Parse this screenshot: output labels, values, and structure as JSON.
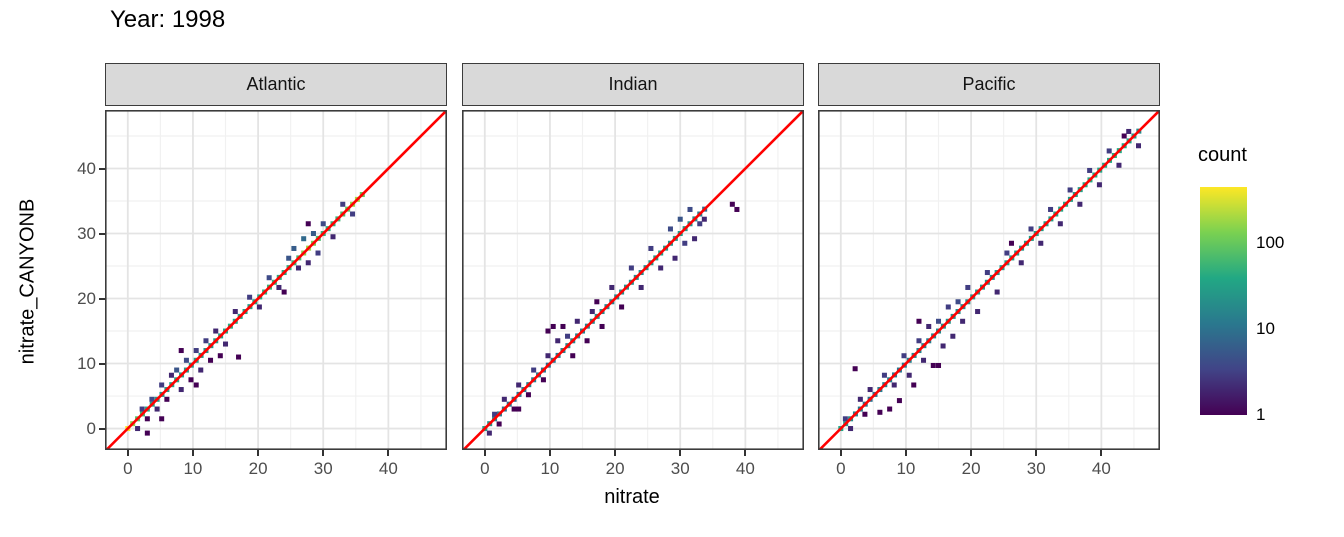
{
  "title": "Year: 1998",
  "axes": {
    "x_label": "nitrate",
    "y_label": "nitrate_CANYONB",
    "x_ticks": [
      0,
      10,
      20,
      30,
      40
    ],
    "y_ticks": [
      0,
      10,
      20,
      30,
      40
    ],
    "minor_ticks": [
      5,
      15,
      25,
      35,
      45
    ],
    "x_range": [
      -3.5,
      49
    ],
    "y_range": [
      -3.3,
      49
    ]
  },
  "legend": {
    "title": "count",
    "tick_labels": [
      "100",
      "10",
      "1"
    ],
    "tick_counts": [
      100,
      10,
      1
    ],
    "max_count": 447,
    "scale": "log10"
  },
  "colors": {
    "viridis_stops": [
      "#440154",
      "#414487",
      "#2a788e",
      "#22a884",
      "#7ad151",
      "#fde725"
    ],
    "identity_line": "#ff0000",
    "strip_fill": "#d9d9d9",
    "panel_border": "#3c3c3c",
    "grid_major": "#e4e4e4",
    "grid_minor": "#f1f1f1",
    "tick_text": "#4d4d4d"
  },
  "chart_data": {
    "type": "heatmap",
    "subtype": "bin2d",
    "title": "Year: 1998",
    "xlabel": "nitrate",
    "ylabel": "nitrate_CANYONB",
    "facets": [
      {
        "label": "Atlantic",
        "bin_step": 0.75,
        "bin_size": 0.77,
        "diagonal_note": "core bins lie on y = x, x from 0 by bin_step",
        "core_counts": [
          420,
          150,
          80,
          55,
          40,
          30,
          25,
          22,
          26,
          30,
          34,
          30,
          26,
          24,
          28,
          25,
          22,
          24,
          27,
          31,
          36,
          42,
          38,
          34,
          31,
          29,
          33,
          38,
          44,
          52,
          48,
          44,
          40,
          46,
          54,
          64,
          150,
          180,
          120,
          70,
          50,
          44,
          48,
          56,
          70,
          90,
          170,
          210,
          100
        ],
        "side_bins": [
          [
            1.5,
            0.0,
            2
          ],
          [
            2.2,
            3.0,
            3
          ],
          [
            3.0,
            1.5,
            1
          ],
          [
            3.7,
            4.5,
            4
          ],
          [
            4.5,
            3.0,
            2
          ],
          [
            5.2,
            6.7,
            3
          ],
          [
            6.0,
            4.5,
            1
          ],
          [
            6.7,
            8.2,
            2
          ],
          [
            7.5,
            9.0,
            5
          ],
          [
            8.2,
            6.0,
            2
          ],
          [
            9.0,
            10.5,
            4
          ],
          [
            9.7,
            7.5,
            1
          ],
          [
            10.5,
            12.0,
            3
          ],
          [
            11.2,
            9.0,
            2
          ],
          [
            12.0,
            13.5,
            3
          ],
          [
            12.7,
            10.5,
            1
          ],
          [
            13.5,
            15.0,
            2
          ],
          [
            15.0,
            13.0,
            2
          ],
          [
            17.0,
            11.0,
            1
          ],
          [
            16.5,
            18.0,
            2
          ],
          [
            18.7,
            20.2,
            3
          ],
          [
            20.2,
            18.7,
            2
          ],
          [
            21.7,
            23.2,
            4
          ],
          [
            23.2,
            21.7,
            2
          ],
          [
            24.7,
            26.2,
            5
          ],
          [
            25.5,
            27.7,
            6
          ],
          [
            26.2,
            24.7,
            2
          ],
          [
            27.0,
            29.2,
            8
          ],
          [
            27.7,
            25.5,
            2
          ],
          [
            28.5,
            30.0,
            6
          ],
          [
            29.2,
            27.0,
            3
          ],
          [
            30.0,
            31.5,
            4
          ],
          [
            31.5,
            29.5,
            2
          ],
          [
            33.0,
            34.5,
            3
          ],
          [
            34.5,
            33.0,
            3
          ],
          [
            3.0,
            -0.7,
            1
          ],
          [
            5.2,
            1.5,
            1
          ],
          [
            8.2,
            12.0,
            1
          ],
          [
            10.5,
            6.7,
            1
          ],
          [
            14.2,
            11.2,
            1
          ],
          [
            27.7,
            31.5,
            1
          ],
          [
            24.0,
            21.0,
            1
          ]
        ]
      },
      {
        "label": "Indian",
        "bin_step": 0.75,
        "bin_size": 0.77,
        "diagonal_note": "core bins lie on y = x, x from 0 by bin_step",
        "core_counts": [
          30,
          22,
          16,
          12,
          10,
          9,
          8,
          10,
          12,
          14,
          13,
          12,
          10,
          9,
          10,
          12,
          14,
          16,
          15,
          14,
          13,
          15,
          17,
          19,
          18,
          16,
          15,
          17,
          20,
          22,
          21,
          19,
          18,
          20,
          24,
          28,
          30,
          26,
          22,
          25,
          28,
          26,
          22,
          18,
          12,
          8
        ],
        "side_bins": [
          [
            0.7,
            -0.7,
            2
          ],
          [
            1.5,
            2.2,
            3
          ],
          [
            2.2,
            0.7,
            1
          ],
          [
            3.0,
            4.5,
            2
          ],
          [
            4.5,
            3.0,
            1
          ],
          [
            5.2,
            6.7,
            2
          ],
          [
            6.7,
            5.2,
            1
          ],
          [
            7.5,
            9.0,
            3
          ],
          [
            9.0,
            7.5,
            1
          ],
          [
            9.7,
            11.2,
            2
          ],
          [
            9.7,
            15.0,
            1
          ],
          [
            10.5,
            15.7,
            1
          ],
          [
            11.2,
            13.5,
            2
          ],
          [
            12.0,
            15.7,
            1
          ],
          [
            12.7,
            14.2,
            3
          ],
          [
            13.5,
            11.2,
            1
          ],
          [
            14.2,
            16.5,
            2
          ],
          [
            15.7,
            13.5,
            1
          ],
          [
            16.5,
            18.0,
            2
          ],
          [
            18.0,
            15.7,
            1
          ],
          [
            19.5,
            21.7,
            2
          ],
          [
            21.0,
            18.7,
            1
          ],
          [
            22.5,
            24.7,
            3
          ],
          [
            24.0,
            21.7,
            2
          ],
          [
            25.5,
            27.7,
            3
          ],
          [
            27.0,
            24.7,
            2
          ],
          [
            28.5,
            30.7,
            4
          ],
          [
            29.2,
            26.2,
            2
          ],
          [
            30.0,
            32.2,
            5
          ],
          [
            30.7,
            28.5,
            3
          ],
          [
            31.5,
            33.7,
            4
          ],
          [
            32.2,
            29.2,
            2
          ],
          [
            33.0,
            31.5,
            3
          ],
          [
            33.7,
            32.2,
            2
          ],
          [
            38.0,
            34.5,
            1
          ],
          [
            38.7,
            33.7,
            1
          ],
          [
            5.2,
            3.0,
            1
          ],
          [
            17.2,
            19.5,
            1
          ]
        ]
      },
      {
        "label": "Pacific",
        "bin_step": 0.75,
        "bin_size": 0.77,
        "diagonal_note": "core bins lie on y = x, x from 0 by bin_step",
        "core_counts": [
          35,
          25,
          18,
          14,
          12,
          10,
          9,
          10,
          12,
          14,
          13,
          12,
          11,
          12,
          14,
          16,
          15,
          14,
          13,
          15,
          17,
          20,
          22,
          20,
          18,
          17,
          19,
          22,
          25,
          24,
          22,
          20,
          22,
          25,
          28,
          26,
          24,
          22,
          25,
          28,
          30,
          28,
          26,
          28,
          32,
          36,
          34,
          30,
          28,
          32,
          36,
          40,
          38,
          34,
          36,
          40,
          44,
          40,
          36,
          32,
          26,
          18
        ],
        "side_bins": [
          [
            0.7,
            1.5,
            3
          ],
          [
            1.5,
            0.0,
            2
          ],
          [
            2.2,
            9.2,
            1
          ],
          [
            3.0,
            4.5,
            2
          ],
          [
            3.7,
            2.2,
            1
          ],
          [
            4.5,
            6.0,
            2
          ],
          [
            6.0,
            2.5,
            1
          ],
          [
            7.5,
            3.0,
            1
          ],
          [
            9.0,
            4.3,
            1
          ],
          [
            6.7,
            8.2,
            3
          ],
          [
            8.2,
            6.7,
            2
          ],
          [
            9.7,
            11.2,
            3
          ],
          [
            10.5,
            8.2,
            2
          ],
          [
            11.2,
            6.7,
            1
          ],
          [
            12.0,
            13.5,
            3
          ],
          [
            12.7,
            10.5,
            2
          ],
          [
            13.5,
            15.7,
            2
          ],
          [
            14.2,
            9.7,
            1
          ],
          [
            15.0,
            9.7,
            1
          ],
          [
            15.0,
            16.5,
            4
          ],
          [
            15.7,
            12.7,
            2
          ],
          [
            16.5,
            18.7,
            3
          ],
          [
            17.2,
            14.2,
            2
          ],
          [
            18.0,
            19.5,
            4
          ],
          [
            18.7,
            16.5,
            2
          ],
          [
            19.5,
            21.7,
            3
          ],
          [
            21.0,
            18.0,
            2
          ],
          [
            22.5,
            24.0,
            3
          ],
          [
            24.0,
            21.0,
            2
          ],
          [
            25.5,
            27.0,
            3
          ],
          [
            26.2,
            28.5,
            1
          ],
          [
            27.7,
            25.5,
            2
          ],
          [
            29.2,
            30.7,
            3
          ],
          [
            30.7,
            28.5,
            2
          ],
          [
            32.2,
            33.7,
            3
          ],
          [
            33.7,
            31.5,
            2
          ],
          [
            35.2,
            36.7,
            3
          ],
          [
            36.7,
            34.5,
            2
          ],
          [
            38.2,
            39.7,
            3
          ],
          [
            39.7,
            37.5,
            2
          ],
          [
            41.2,
            42.7,
            3
          ],
          [
            42.7,
            40.5,
            2
          ],
          [
            44.2,
            45.7,
            2
          ],
          [
            45.7,
            43.5,
            2
          ],
          [
            43.5,
            45.0,
            1
          ],
          [
            12.0,
            16.5,
            1
          ]
        ]
      }
    ],
    "reference_line": {
      "type": "identity",
      "equation": "y = x",
      "color": "#ff0000"
    }
  }
}
